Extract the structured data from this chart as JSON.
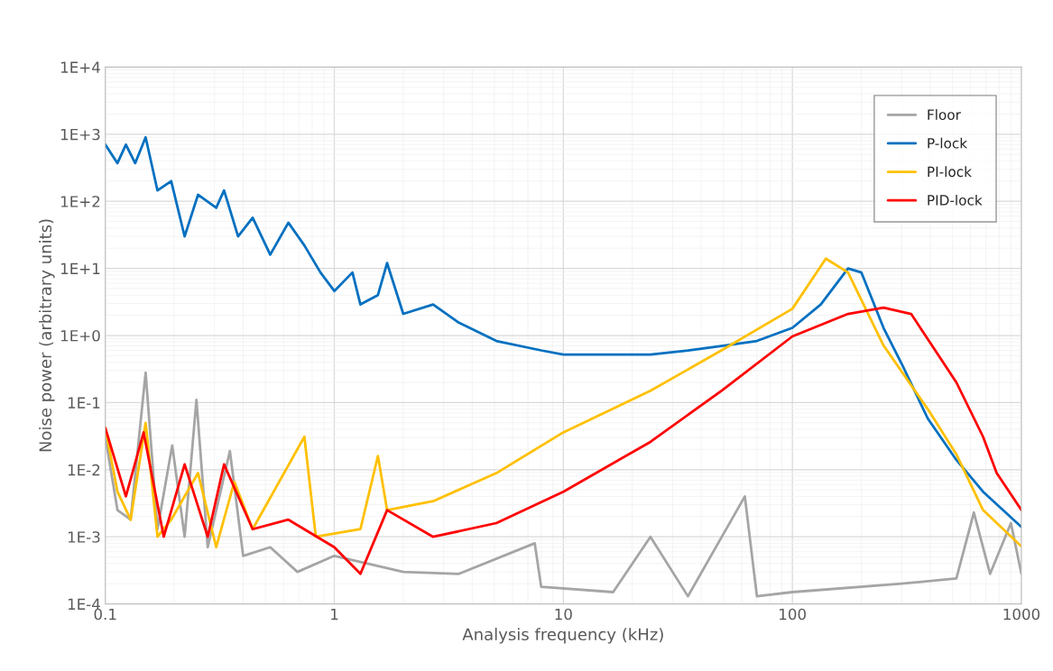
{
  "chart_data": {
    "type": "line",
    "xlabel": "Analysis frequency (kHz)",
    "ylabel": "Noise power (arbitrary units)",
    "log": "xy",
    "grid": true,
    "legend": "top right",
    "marker": "none",
    "line_style": "solid",
    "xlim": [
      0.1,
      1000
    ],
    "xticks": [
      0.1,
      1,
      10,
      100,
      1000
    ],
    "ylim": [
      0.0001,
      10000
    ],
    "yticks": [
      {
        "value": 0.0001,
        "label": "1E-4"
      },
      {
        "value": 0.001,
        "label": "1E-3"
      },
      {
        "value": 0.01,
        "label": "1E-2"
      },
      {
        "value": 0.1,
        "label": "1E-1"
      },
      {
        "value": 1,
        "label": "1E+0"
      },
      {
        "value": 10,
        "label": "1E+1"
      },
      {
        "value": 100,
        "label": "1E+2"
      },
      {
        "value": 1000,
        "label": "1E+3"
      },
      {
        "value": 10000,
        "label": "1E+4"
      }
    ],
    "series": [
      {
        "name": "Floor",
        "color": "#a5a5a5",
        "x": [
          0.1,
          0.113,
          0.129,
          0.15,
          0.169,
          0.196,
          0.222,
          0.25,
          0.28,
          0.35,
          0.4,
          0.525,
          0.69,
          1.0,
          2.0,
          3.5,
          7.5,
          8,
          16.5,
          24,
          35,
          62,
          70,
          100,
          300,
          520,
          620,
          730,
          900,
          1000
        ],
        "values": [
          0.031,
          0.0025,
          0.0018,
          0.28,
          0.0013,
          0.023,
          0.001,
          0.11,
          0.0007,
          0.019,
          0.00052,
          0.0007,
          0.0003,
          0.00052,
          0.0003,
          0.00028,
          0.0008,
          0.00018,
          0.00015,
          0.001,
          0.00013,
          0.004,
          0.00013,
          0.00015,
          0.0002,
          0.00024,
          0.0023,
          0.00028,
          0.0016,
          0.00028
        ]
      },
      {
        "name": "P-lock",
        "color": "#0070c0",
        "x": [
          0.1,
          0.113,
          0.123,
          0.135,
          0.15,
          0.169,
          0.194,
          0.222,
          0.254,
          0.305,
          0.33,
          0.38,
          0.44,
          0.525,
          0.63,
          0.74,
          0.87,
          1.0,
          1.2,
          1.3,
          1.55,
          1.7,
          2.0,
          2.7,
          3.5,
          5.1,
          8,
          10,
          16.5,
          24,
          35,
          49,
          70,
          100,
          133,
          175,
          200,
          250,
          300,
          390,
          520,
          680,
          1000
        ],
        "values": [
          700,
          370,
          700,
          370,
          900,
          145,
          200,
          30,
          125,
          80,
          145,
          30,
          57,
          16,
          48,
          22,
          8.7,
          4.6,
          8.7,
          2.9,
          4,
          12,
          2.1,
          2.9,
          1.55,
          0.83,
          0.6,
          0.52,
          0.52,
          0.52,
          0.6,
          0.7,
          0.83,
          1.3,
          2.9,
          10,
          8.7,
          1.3,
          0.38,
          0.058,
          0.014,
          0.0047,
          0.0014
        ]
      },
      {
        "name": "PI-lock",
        "color": "#ffc000",
        "x": [
          0.1,
          0.113,
          0.129,
          0.15,
          0.169,
          0.194,
          0.254,
          0.305,
          0.366,
          0.44,
          0.74,
          0.83,
          1.3,
          1.55,
          1.7,
          2.7,
          5.1,
          10,
          24,
          49,
          100,
          140,
          175,
          250,
          390,
          520,
          680,
          1000
        ],
        "values": [
          0.042,
          0.0047,
          0.0018,
          0.05,
          0.001,
          0.0018,
          0.0089,
          0.0007,
          0.0066,
          0.0013,
          0.031,
          0.001,
          0.0013,
          0.016,
          0.0025,
          0.0034,
          0.0089,
          0.036,
          0.15,
          0.6,
          2.5,
          14,
          8.7,
          0.71,
          0.08,
          0.017,
          0.0025,
          0.00072
        ]
      },
      {
        "name": "PID-lock",
        "color": "#ff0000",
        "x": [
          0.1,
          0.123,
          0.147,
          0.18,
          0.222,
          0.28,
          0.33,
          0.44,
          0.63,
          1.0,
          1.3,
          1.7,
          2.7,
          5.1,
          10,
          24,
          49,
          100,
          175,
          250,
          330,
          520,
          680,
          780,
          1000
        ],
        "values": [
          0.042,
          0.004,
          0.036,
          0.001,
          0.012,
          0.001,
          0.012,
          0.0013,
          0.0018,
          0.0007,
          0.00028,
          0.0025,
          0.001,
          0.0016,
          0.0047,
          0.026,
          0.15,
          0.97,
          2.1,
          2.6,
          2.1,
          0.2,
          0.031,
          0.0089,
          0.0025
        ]
      }
    ]
  }
}
